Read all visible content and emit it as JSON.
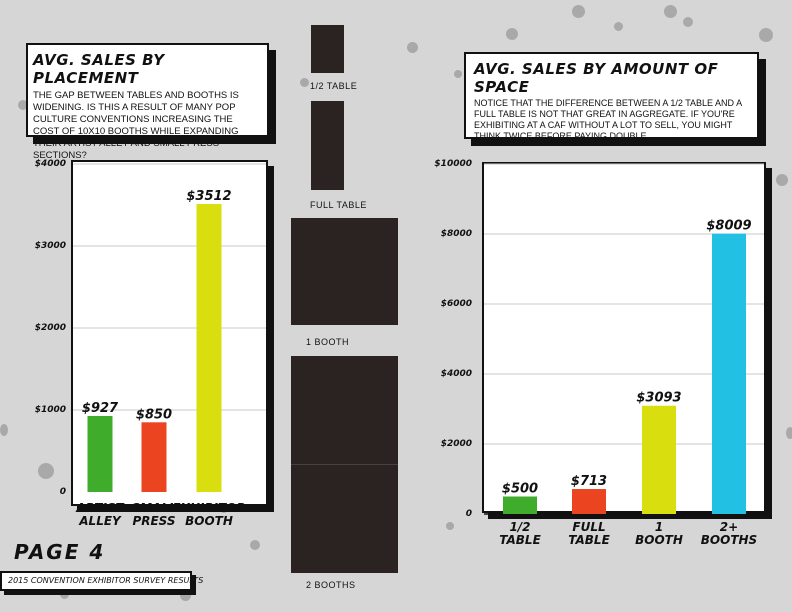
{
  "left_title": "AVG. SALES BY PLACEMENT",
  "left_description": "THE GAP BETWEEN TABLES AND BOOTHS IS WIDENING. IS THIS A RESULT OF MANY POP CULTURE CONVENTIONS INCREASING THE COST OF 10X10 BOOTHS WHILE EXPANDING THEIR ARTIST ALLEY AND SMALL PRESS SECTIONS?",
  "right_title": "AVG. SALES BY AMOUNT OF SPACE",
  "right_description": "NOTICE THAT THE DIFFERENCE BETWEEN A 1/2 TABLE AND A FULL TABLE IS NOT THAT GREAT IN AGGREGATE. IF YOU'RE EXHIBITING AT A CAF WITHOUT A LOT TO SELL, YOU MIGHT THINK TWICE BEFORE PAYING DOUBLE.",
  "space_blocks": [
    {
      "label": "1/2 TABLE"
    },
    {
      "label": "FULL TABLE"
    },
    {
      "label": "1 BOOTH"
    },
    {
      "label": "2 BOOTHS"
    }
  ],
  "page_label": "PAGE 4",
  "footer_text": "2015 CONVENTION EXHIBITOR SURVEY RESULTS",
  "chart_data": [
    {
      "type": "bar",
      "title": "AVG. SALES BY PLACEMENT",
      "categories": [
        [
          "ARTIST",
          "ALLEY"
        ],
        [
          "SMALL",
          "PRESS"
        ],
        [
          "EXHIBITOR",
          "BOOTH"
        ]
      ],
      "values": [
        927,
        850,
        3512
      ],
      "data_labels": [
        "$927",
        "$850",
        "$3512"
      ],
      "colors": [
        "#3fac2c",
        "#ea4420",
        "#d9df0e"
      ],
      "ylim": [
        0,
        4000
      ],
      "yticks": [
        0,
        1000,
        2000,
        3000,
        4000
      ],
      "ytick_labels": [
        "0",
        "$1000",
        "$2000",
        "$3000",
        "$4000"
      ],
      "grid": true
    },
    {
      "type": "bar",
      "title": "AVG. SALES BY AMOUNT OF SPACE",
      "categories": [
        [
          "1/2",
          "TABLE"
        ],
        [
          "FULL",
          "TABLE"
        ],
        [
          "1",
          "BOOTH"
        ],
        [
          "2+",
          "BOOTHS"
        ]
      ],
      "values": [
        500,
        713,
        3093,
        8009
      ],
      "data_labels": [
        "$500",
        "$713",
        "$3093",
        "$8009"
      ],
      "colors": [
        "#3fac2c",
        "#ea4420",
        "#d9df0e",
        "#22c0e2"
      ],
      "ylim": [
        0,
        10000
      ],
      "yticks": [
        0,
        2000,
        4000,
        6000,
        8000,
        10000
      ],
      "ytick_labels": [
        "0",
        "$2000",
        "$4000",
        "$6000",
        "$8000",
        "$10000"
      ],
      "grid": true
    }
  ]
}
